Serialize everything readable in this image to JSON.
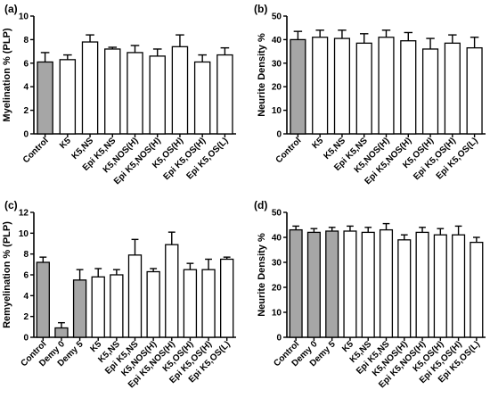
{
  "chart_data": [
    {
      "type": "bar",
      "panel_label": "(a)",
      "ylabel": "Myelination % (PLP)",
      "ylim": [
        0,
        10
      ],
      "yticks": [
        0,
        2,
        4,
        6,
        8,
        10
      ],
      "grid": false,
      "categories": [
        "Control",
        "K5",
        "K5,NS",
        "Epi K5,NS",
        "K5,NOS(H)",
        "Epi K5,NOS(H)",
        "K5,OS(H)",
        "Epi K5,OS(H)",
        "Epi K5,OS(L)"
      ],
      "values": [
        6.1,
        6.3,
        7.8,
        7.2,
        6.9,
        6.6,
        7.4,
        6.1,
        6.7
      ],
      "errors": [
        0.8,
        0.4,
        0.6,
        0.15,
        0.6,
        0.6,
        1.0,
        0.6,
        0.6
      ],
      "fill_colors": [
        "#a6a6a6",
        "#ffffff",
        "#ffffff",
        "#ffffff",
        "#ffffff",
        "#ffffff",
        "#ffffff",
        "#ffffff",
        "#ffffff"
      ]
    },
    {
      "type": "bar",
      "panel_label": "(b)",
      "ylabel": "Neurite Density %",
      "ylim": [
        0,
        50
      ],
      "yticks": [
        0,
        10,
        20,
        30,
        40,
        50
      ],
      "grid": false,
      "categories": [
        "Control",
        "K5",
        "K5,NS",
        "Epi K5,NS",
        "K5,NOS(H)",
        "Epi K5,NOS(H)",
        "K5,OS(H)",
        "Epi K5,OS(H)",
        "Epi K5,OS(L)"
      ],
      "values": [
        40,
        41,
        40.5,
        38.5,
        41,
        39.5,
        36,
        38.5,
        36.5
      ],
      "errors": [
        3.5,
        3,
        3.5,
        4,
        3,
        3.5,
        4.5,
        3.5,
        4.5
      ],
      "fill_colors": [
        "#a6a6a6",
        "#ffffff",
        "#ffffff",
        "#ffffff",
        "#ffffff",
        "#ffffff",
        "#ffffff",
        "#ffffff",
        "#ffffff"
      ]
    },
    {
      "type": "bar",
      "panel_label": "(c)",
      "ylabel": "Remyelination % (PLP)",
      "ylim": [
        0,
        12
      ],
      "yticks": [
        0,
        2,
        4,
        6,
        8,
        10,
        12
      ],
      "grid": false,
      "categories": [
        "Control",
        "Demy 0",
        "Demy 5",
        "K5",
        "K5,NS",
        "Epi K5,NS",
        "K5,NOS(H)",
        "Epi K5,NOS(H)",
        "K5,OS(H)",
        "Epi K5,OS(H)",
        "Epi K5,OS(L)"
      ],
      "values": [
        7.2,
        0.9,
        5.5,
        5.8,
        6.0,
        7.9,
        6.3,
        8.9,
        6.5,
        6.5,
        7.5
      ],
      "errors": [
        0.5,
        0.5,
        1.0,
        0.8,
        0.5,
        1.5,
        0.3,
        1.2,
        0.6,
        1.0,
        0.2
      ],
      "fill_colors": [
        "#a6a6a6",
        "#a6a6a6",
        "#a6a6a6",
        "#ffffff",
        "#ffffff",
        "#ffffff",
        "#ffffff",
        "#ffffff",
        "#ffffff",
        "#ffffff",
        "#ffffff"
      ]
    },
    {
      "type": "bar",
      "panel_label": "(d)",
      "ylabel": "Neurite Density %",
      "ylim": [
        0,
        50
      ],
      "yticks": [
        0,
        10,
        20,
        30,
        40,
        50
      ],
      "grid": false,
      "categories": [
        "Control",
        "Demy 0",
        "Demy 5",
        "K5",
        "K5,NS",
        "Epi K5,NS",
        "K5,NOS(H)",
        "Epi K5,NOS(H)",
        "K5,OS(H)",
        "Epi K5,OS(H)",
        "Epi K5,OS(L)"
      ],
      "values": [
        43,
        42,
        42.5,
        42.5,
        42,
        43,
        39,
        42,
        41,
        41,
        38
      ],
      "errors": [
        1.5,
        1.5,
        1.5,
        2,
        2,
        2.5,
        2,
        2,
        2.5,
        3.5,
        2
      ],
      "fill_colors": [
        "#a6a6a6",
        "#a6a6a6",
        "#a6a6a6",
        "#ffffff",
        "#ffffff",
        "#ffffff",
        "#ffffff",
        "#ffffff",
        "#ffffff",
        "#ffffff",
        "#ffffff"
      ]
    }
  ]
}
